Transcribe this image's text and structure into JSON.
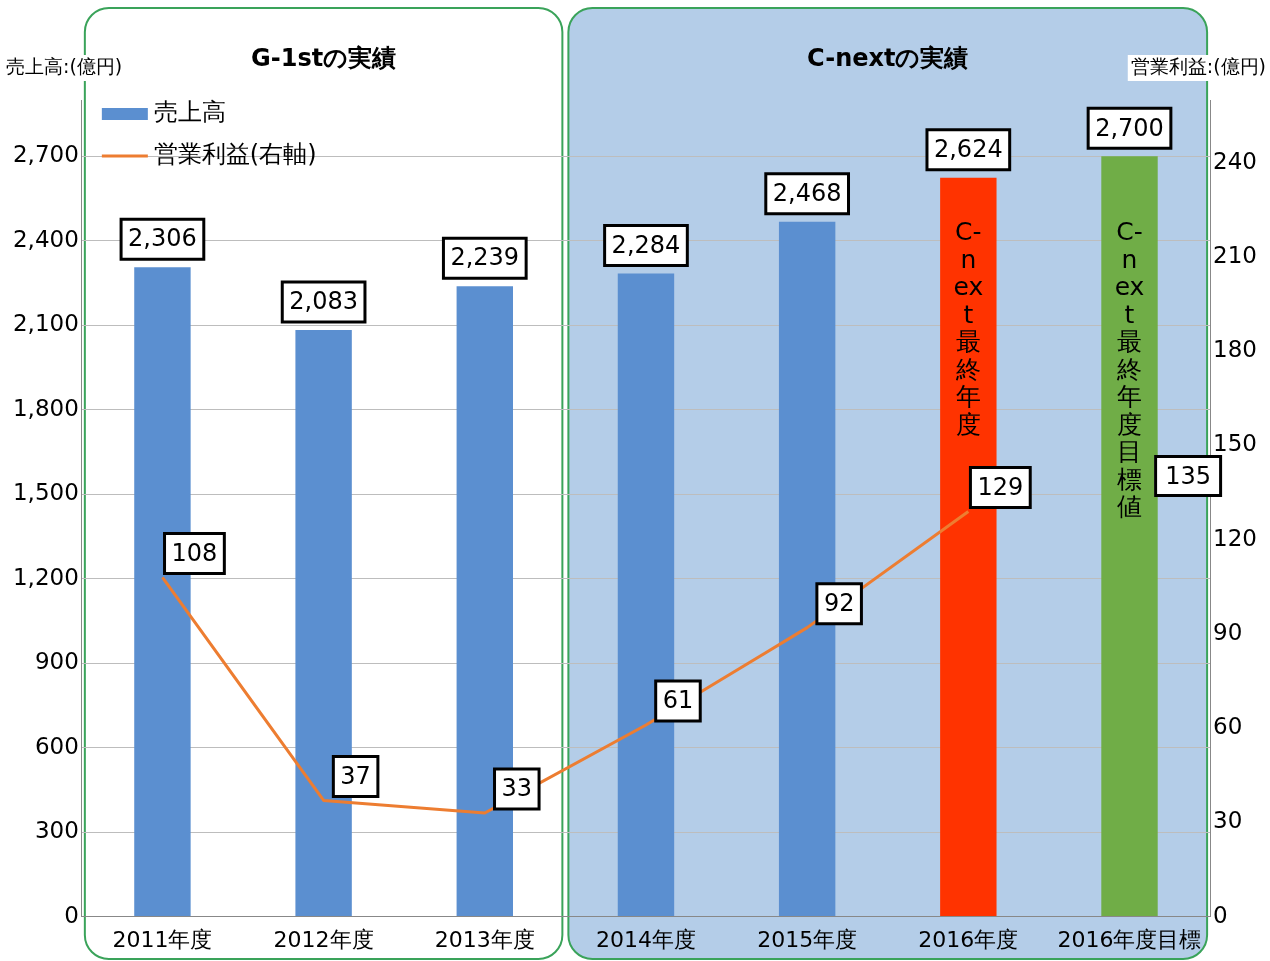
{
  "chart_data": {
    "type": "bar",
    "categories": [
      "2011年度",
      "2012年度",
      "2013年度",
      "2014年度",
      "2015年度",
      "2016年度",
      "2016年度目標"
    ],
    "series": [
      {
        "name": "売上高",
        "color": "#5b8fd0",
        "colors": [
          "#5b8fd0",
          "#5b8fd0",
          "#5b8fd0",
          "#5b8fd0",
          "#5b8fd0",
          "#ff3300",
          "#70ad47"
        ],
        "values": [
          2306,
          2083,
          2239,
          2284,
          2468,
          2624,
          2700
        ],
        "value_labels": [
          "2,306",
          "2,083",
          "2,239",
          "2,284",
          "2,468",
          "2,624",
          "2,700"
        ]
      },
      {
        "name": "営業利益(右軸)",
        "type": "line",
        "axis": "y2",
        "color": "#ed7d31",
        "values": [
          108,
          37,
          33,
          61,
          92,
          129,
          null
        ],
        "value_labels": [
          "108",
          "37",
          "33",
          "61",
          "92",
          "129",
          null
        ]
      }
    ],
    "ylabel": "売上高:(億円)",
    "y2label": "営業利益:(億円)",
    "ylim": [
      0,
      2900
    ],
    "yticks": [
      {
        "value": 0,
        "label": "0"
      },
      {
        "value": 300,
        "label": "300"
      },
      {
        "value": 600,
        "label": "600"
      },
      {
        "value": 900,
        "label": "900"
      },
      {
        "value": 1200,
        "label": "1,200"
      },
      {
        "value": 1500,
        "label": "1,500"
      },
      {
        "value": 1800,
        "label": "1,800"
      },
      {
        "value": 2100,
        "label": "2,100"
      },
      {
        "value": 2400,
        "label": "2,400"
      },
      {
        "value": 2700,
        "label": "2,700"
      }
    ],
    "y2lim": [
      0,
      260
    ],
    "y2ticks": [
      0,
      30,
      60,
      90,
      120,
      150,
      180,
      210,
      240
    ],
    "bands": [
      {
        "axis": "x",
        "from": "2011年度",
        "to": "2013年度",
        "label": "G-1stの実績",
        "color": "#ffffff"
      },
      {
        "axis": "x",
        "from": "2014年度",
        "to": "2016年度目標",
        "label": "C-nextの実績",
        "color": "#b4cde8"
      }
    ],
    "annotations": [
      "C-next 最終年度",
      "C-next 最終年度目標値",
      "135"
    ],
    "grid": "y",
    "legend": "top left",
    "line_style": "solid",
    "marker": "none"
  }
}
